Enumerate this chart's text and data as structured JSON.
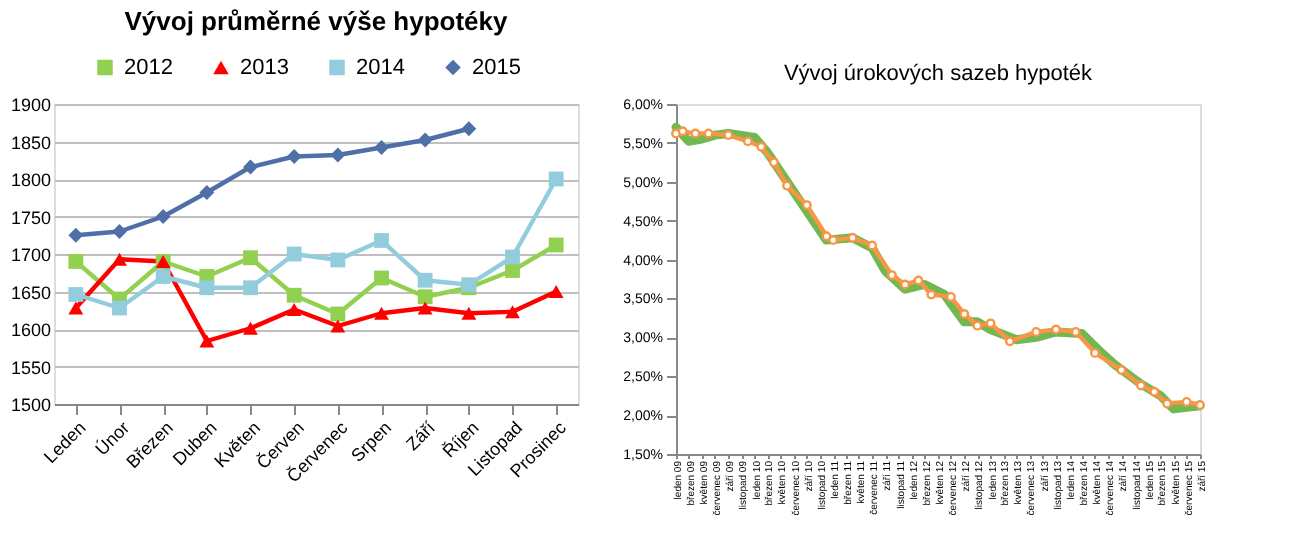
{
  "chart_data": [
    {
      "type": "line",
      "title": "Vývoj průměrné výše hypotéky",
      "categories": [
        "Leden",
        "Únor",
        "Březen",
        "Duben",
        "Květen",
        "Červen",
        "Červenec",
        "Srpen",
        "Září",
        "Říjen",
        "Listopad",
        "Prosinec"
      ],
      "series": [
        {
          "name": "2012",
          "color": "#92d050",
          "marker": "square",
          "values": [
            1690,
            1640,
            1690,
            1670,
            1695,
            1645,
            1620,
            1668,
            1643,
            1655,
            1678,
            1712
          ]
        },
        {
          "name": "2013",
          "color": "#ff0000",
          "marker": "triangle",
          "values": [
            1628,
            1693,
            1690,
            1584,
            1601,
            1626,
            1604,
            1621,
            1628,
            1621,
            1623,
            1650
          ]
        },
        {
          "name": "2014",
          "color": "#93cddd",
          "marker": "square",
          "values": [
            1646,
            1628,
            1670,
            1655,
            1655,
            1700,
            1692,
            1718,
            1665,
            1659,
            1696,
            1800
          ]
        },
        {
          "name": "2015",
          "color": "#4f6fa8",
          "marker": "diamond",
          "values": [
            1725,
            1730,
            1750,
            1782,
            1816,
            1830,
            1832,
            1842,
            1852,
            1867,
            null,
            null
          ]
        }
      ],
      "ylim": [
        1500,
        1900
      ],
      "yticks": [
        1500,
        1550,
        1600,
        1650,
        1700,
        1750,
        1800,
        1850,
        1900
      ],
      "grid": "y",
      "legend": "top"
    },
    {
      "type": "line",
      "title": "Vývoj úrokových sazeb hypoték",
      "series": [
        {
          "color": "#70b84f",
          "marker": "none",
          "x": [
            "2009-01",
            "2009-03",
            "2009-05",
            "2009-07",
            "2009-09",
            "2010-01",
            "2010-03",
            "2010-06",
            "2010-08",
            "2010-10",
            "2010-12",
            "2011-04",
            "2011-07",
            "2011-09",
            "2011-12",
            "2012-03",
            "2012-06",
            "2012-09",
            "2012-11",
            "2013-01",
            "2013-05",
            "2013-08",
            "2013-11",
            "2014-03",
            "2014-06",
            "2014-08",
            "2014-12",
            "2015-03",
            "2015-05",
            "2015-07",
            "2015-09"
          ],
          "values": [
            5.7,
            5.52,
            5.55,
            5.6,
            5.62,
            5.57,
            5.38,
            5.0,
            4.75,
            4.5,
            4.25,
            4.28,
            4.15,
            3.85,
            3.62,
            3.68,
            3.55,
            3.2,
            3.2,
            3.1,
            2.97,
            3.0,
            3.07,
            3.05,
            2.8,
            2.65,
            2.4,
            2.25,
            2.08,
            2.1,
            2.12
          ]
        },
        {
          "color": "#f79646",
          "marker": "circle",
          "x": [
            "2009-01",
            "2009-02",
            "2009-04",
            "2009-06",
            "2009-09",
            "2009-12",
            "2010-02",
            "2010-04",
            "2010-06",
            "2010-09",
            "2010-12",
            "2011-01",
            "2011-04",
            "2011-07",
            "2011-10",
            "2011-12",
            "2012-02",
            "2012-04",
            "2012-07",
            "2012-09",
            "2012-11",
            "2013-01",
            "2013-04",
            "2013-08",
            "2013-11",
            "2014-02",
            "2014-05",
            "2014-09",
            "2014-12",
            "2015-02",
            "2015-04",
            "2015-07",
            "2015-09"
          ],
          "values": [
            5.62,
            5.65,
            5.62,
            5.62,
            5.6,
            5.52,
            5.45,
            5.25,
            4.95,
            4.7,
            4.3,
            4.25,
            4.28,
            4.18,
            3.8,
            3.68,
            3.73,
            3.55,
            3.52,
            3.3,
            3.15,
            3.18,
            2.95,
            3.07,
            3.1,
            3.07,
            2.8,
            2.58,
            2.38,
            2.3,
            2.15,
            2.17,
            2.13
          ]
        }
      ],
      "xlim": [
        "2009-01",
        "2015-09"
      ],
      "xticks": [
        {
          "value": "2009-01",
          "label": "leden 09"
        },
        {
          "value": "2009-03",
          "label": "březen 09"
        },
        {
          "value": "2009-05",
          "label": "květen 09"
        },
        {
          "value": "2009-07",
          "label": "červenec 09"
        },
        {
          "value": "2009-09",
          "label": "září 09"
        },
        {
          "value": "2009-11",
          "label": "listopad 09"
        },
        {
          "value": "2010-01",
          "label": "leden 10"
        },
        {
          "value": "2010-03",
          "label": "březen 10"
        },
        {
          "value": "2010-05",
          "label": "květen 10"
        },
        {
          "value": "2010-07",
          "label": "červenec 10"
        },
        {
          "value": "2010-09",
          "label": "září 10"
        },
        {
          "value": "2010-11",
          "label": "listopad 10"
        },
        {
          "value": "2011-01",
          "label": "leden 11"
        },
        {
          "value": "2011-03",
          "label": "březen 11"
        },
        {
          "value": "2011-05",
          "label": "květen 11"
        },
        {
          "value": "2011-07",
          "label": "červenec 11"
        },
        {
          "value": "2011-09",
          "label": "září 11"
        },
        {
          "value": "2011-11",
          "label": "listopad 11"
        },
        {
          "value": "2012-01",
          "label": "leden 12"
        },
        {
          "value": "2012-03",
          "label": "březen 12"
        },
        {
          "value": "2012-05",
          "label": "květen 12"
        },
        {
          "value": "2012-07",
          "label": "červenec 12"
        },
        {
          "value": "2012-09",
          "label": "září 12"
        },
        {
          "value": "2012-11",
          "label": "listopad 12"
        },
        {
          "value": "2013-01",
          "label": "leden 13"
        },
        {
          "value": "2013-03",
          "label": "březen 13"
        },
        {
          "value": "2013-05",
          "label": "květen 13"
        },
        {
          "value": "2013-07",
          "label": "červenec 13"
        },
        {
          "value": "2013-09",
          "label": "září 13"
        },
        {
          "value": "2013-11",
          "label": "listopad 13"
        },
        {
          "value": "2014-01",
          "label": "leden 14"
        },
        {
          "value": "2014-03",
          "label": "březen 14"
        },
        {
          "value": "2014-05",
          "label": "květen 14"
        },
        {
          "value": "2014-07",
          "label": "červenec 14"
        },
        {
          "value": "2014-09",
          "label": "září 14"
        },
        {
          "value": "2014-11",
          "label": "listopad 14"
        },
        {
          "value": "2015-01",
          "label": "leden 15"
        },
        {
          "value": "2015-03",
          "label": "březen 15"
        },
        {
          "value": "2015-05",
          "label": "květen 15"
        },
        {
          "value": "2015-07",
          "label": "červenec 15"
        },
        {
          "value": "2015-09",
          "label": "září 15"
        }
      ],
      "ylim": [
        1.5,
        6.0
      ],
      "yticks": [
        {
          "value": 1.5,
          "label": "1,50%"
        },
        {
          "value": 2.0,
          "label": "2,00%"
        },
        {
          "value": 2.5,
          "label": "2,50%"
        },
        {
          "value": 3.0,
          "label": "3,00%"
        },
        {
          "value": 3.5,
          "label": "3,50%"
        },
        {
          "value": 4.0,
          "label": "4,00%"
        },
        {
          "value": 4.5,
          "label": "4,50%"
        },
        {
          "value": 5.0,
          "label": "5,00%"
        },
        {
          "value": 5.5,
          "label": "5,50%"
        },
        {
          "value": 6.0,
          "label": "6,00%"
        }
      ],
      "grid": false
    }
  ]
}
